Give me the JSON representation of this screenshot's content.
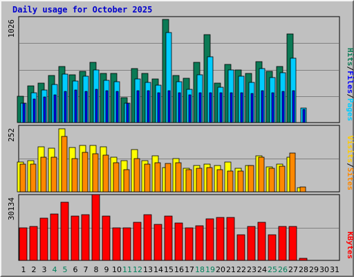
{
  "chart_data": {
    "type": "bar",
    "title": "Daily usage for October 2025",
    "categories": [
      "1",
      "2",
      "3",
      "4",
      "5",
      "6",
      "7",
      "8",
      "9",
      "10",
      "11",
      "12",
      "13",
      "14",
      "15",
      "16",
      "17",
      "18",
      "19",
      "20",
      "21",
      "22",
      "23",
      "24",
      "25",
      "26",
      "27",
      "28",
      "29",
      "30",
      "31"
    ],
    "weekend_days": [
      "4",
      "5",
      "11",
      "12",
      "18",
      "19",
      "25",
      "26"
    ],
    "panels": [
      {
        "name": "hits-pages-files",
        "ymax_label": "1026",
        "ylim": [
          0,
          1026
        ],
        "legend": [
          "Pages",
          "Files",
          "Hits"
        ],
        "series": [
          {
            "name": "Hits",
            "color": "#0b7a55",
            "values": [
              256,
              358,
              380,
              458,
              540,
              460,
              496,
              581,
              479,
              479,
              244,
              524,
              479,
              425,
              996,
              456,
              426,
              581,
              854,
              381,
              562,
              509,
              479,
              593,
              494,
              540,
              856,
              0,
              0,
              0,
              0
            ]
          },
          {
            "name": "Files",
            "color": "#00ccff",
            "values": [
              186,
              285,
              315,
              368,
              468,
              399,
              452,
              512,
              410,
              398,
              186,
              420,
              390,
              359,
              872,
              397,
              320,
              461,
              634,
              342,
              507,
              449,
              389,
              523,
              437,
              486,
              621,
              142,
              0,
              0,
              0
            ]
          },
          {
            "name": "Pages",
            "color": "#0000ff",
            "values": [
              186,
              225,
              250,
              270,
              300,
              315,
              300,
              320,
              310,
              300,
              186,
              310,
              310,
              290,
              310,
              290,
              270,
              290,
              290,
              290,
              290,
              290,
              280,
              310,
              290,
              300,
              310,
              130,
              0,
              0,
              0
            ]
          }
        ]
      },
      {
        "name": "visits-sites",
        "ymax_label": "252",
        "ylim": [
          0,
          252
        ],
        "legend": [
          "Sites",
          "Visits"
        ],
        "series": [
          {
            "name": "Visits",
            "color": "#ffff00",
            "values": [
              112,
              118,
              170,
              165,
              240,
              168,
              176,
              176,
              170,
              132,
              117,
              160,
              117,
              136,
              92,
              127,
              90,
              100,
              105,
              100,
              113,
              90,
              100,
              136,
              94,
              105,
              132,
              15,
              0,
              0,
              0
            ]
          },
          {
            "name": "Sites",
            "color": "#ff8800",
            "values": [
              105,
              105,
              130,
              132,
              210,
              126,
              150,
              145,
              140,
              110,
              85,
              125,
              106,
              110,
              108,
              110,
              85,
              90,
              93,
              85,
              80,
              80,
              99,
              132,
              90,
              97,
              148,
              18,
              0,
              0,
              0
            ]
          }
        ]
      },
      {
        "name": "kbytes",
        "ymax_label": "30134",
        "ylim": [
          0,
          30134
        ],
        "legend": [
          "KBytes"
        ],
        "series": [
          {
            "name": "KBytes",
            "color": "#ff0000",
            "values": [
              14880,
              15490,
              19240,
              21340,
              26500,
              20430,
              21050,
              29980,
              20430,
              14880,
              14880,
              17600,
              20780,
              16500,
              20240,
              17160,
              14980,
              15760,
              18890,
              19600,
              19530,
              11580,
              15560,
              17600,
              11730,
              15530,
              15560,
              1050,
              0,
              0,
              0
            ]
          }
        ]
      }
    ],
    "colors": {
      "weekday_label": "#000000",
      "weekend_label": "#00805a",
      "panel_bg": "#c0c0c0",
      "gridline": "#808080"
    }
  }
}
